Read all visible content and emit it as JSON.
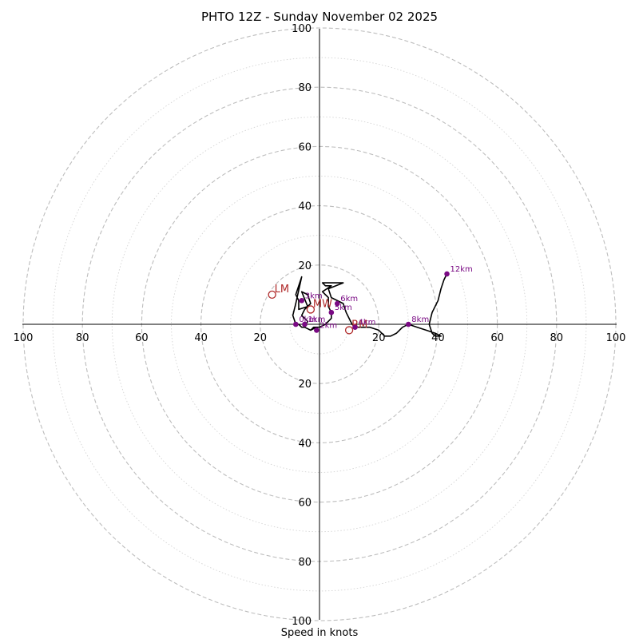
{
  "chart_data": {
    "type": "hodograph",
    "title": "PHTO 12Z - Sunday November 02 2025",
    "xlabel": "Speed in knots",
    "range": [
      -100,
      100
    ],
    "rings_major": [
      20,
      40,
      60,
      80,
      100
    ],
    "rings_minor": [
      10,
      30,
      50,
      70,
      90
    ],
    "ticks": {
      "left": [
        "100",
        "80",
        "60",
        "40",
        "20"
      ],
      "right": [
        "20",
        "40",
        "60",
        "80",
        "100"
      ],
      "top": [
        "20",
        "40",
        "60",
        "80",
        "100"
      ],
      "bottom": [
        "20",
        "40",
        "60",
        "80",
        "100"
      ]
    },
    "trace": [
      [
        -1,
        -1
      ],
      [
        -3,
        -2
      ],
      [
        -5,
        -1
      ],
      [
        -4,
        1
      ],
      [
        -6,
        3
      ],
      [
        -5,
        5
      ],
      [
        -3,
        7
      ],
      [
        -4,
        10
      ],
      [
        -6,
        11
      ],
      [
        -4,
        6
      ],
      [
        -7,
        5
      ],
      [
        -7,
        8
      ],
      [
        -8,
        10
      ],
      [
        -6,
        16
      ],
      [
        -8,
        7
      ],
      [
        -9,
        3
      ],
      [
        -8,
        0
      ],
      [
        -7,
        0
      ],
      [
        -6,
        -1
      ],
      [
        -5,
        -1
      ],
      [
        -3,
        -2
      ],
      [
        -2,
        -1
      ],
      [
        -1,
        -1
      ],
      [
        0,
        -1
      ],
      [
        2,
        0
      ],
      [
        4,
        2
      ],
      [
        4,
        4
      ],
      [
        3,
        6
      ],
      [
        3,
        9
      ],
      [
        1,
        11
      ],
      [
        4,
        13
      ],
      [
        2,
        13
      ],
      [
        1,
        14
      ],
      [
        8,
        14
      ],
      [
        8,
        14
      ],
      [
        3,
        12
      ],
      [
        4,
        9
      ],
      [
        8,
        7
      ],
      [
        9,
        4
      ],
      [
        10,
        2
      ],
      [
        11,
        0
      ],
      [
        12,
        -1
      ],
      [
        14,
        -1
      ],
      [
        17,
        -1
      ],
      [
        20,
        -2
      ],
      [
        22,
        -4
      ],
      [
        24,
        -4
      ],
      [
        26,
        -3
      ],
      [
        28,
        -1
      ],
      [
        30,
        0
      ],
      [
        33,
        -1
      ],
      [
        36,
        -2
      ],
      [
        39,
        -3
      ],
      [
        41,
        -4
      ],
      [
        39,
        -4
      ],
      [
        38,
        -3
      ],
      [
        37,
        0
      ],
      [
        38,
        4
      ],
      [
        40,
        8
      ],
      [
        41,
        12
      ],
      [
        42,
        15
      ],
      [
        43,
        17
      ]
    ],
    "height_markers": [
      {
        "label": "0km",
        "u": -8,
        "v": 0
      },
      {
        "label": "1km",
        "u": -5,
        "v": 0
      },
      {
        "label": "2km",
        "u": -1,
        "v": -2
      },
      {
        "label": "3km",
        "u": -6,
        "v": 8
      },
      {
        "label": "4km",
        "u": 12,
        "v": -1
      },
      {
        "label": "5km",
        "u": 4,
        "v": 4
      },
      {
        "label": "6km",
        "u": 6,
        "v": 7
      },
      {
        "label": "8km",
        "u": 30,
        "v": 0
      },
      {
        "label": "12km",
        "u": 43,
        "v": 17
      }
    ],
    "vectors": [
      {
        "label": "LM",
        "u": -16,
        "v": 10
      },
      {
        "label": "RM",
        "u": 10,
        "v": -2
      },
      {
        "label": "MW",
        "u": -3,
        "v": 5
      }
    ]
  }
}
